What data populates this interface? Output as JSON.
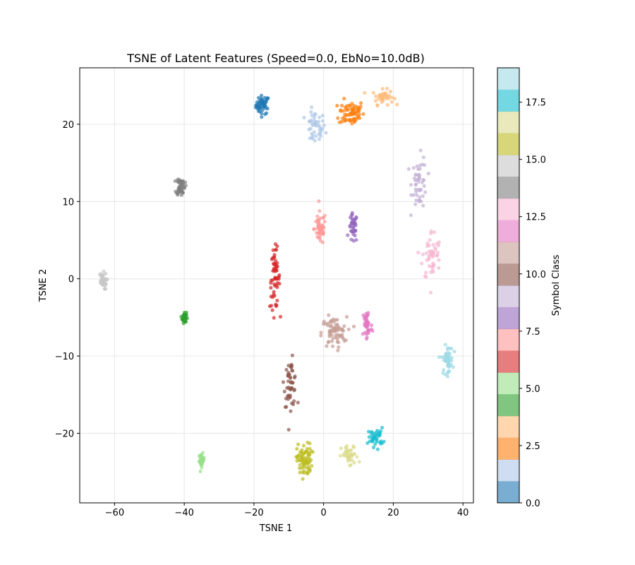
{
  "chart_data": {
    "type": "scatter",
    "title": "TSNE of Latent Features (Speed=0.0, EbNo=10.0dB)",
    "xlabel": "TSNE 1",
    "ylabel": "TSNE 2",
    "xlim": [
      -70,
      43
    ],
    "ylim": [
      -29,
      27.3
    ],
    "xticks": [
      -60,
      -40,
      -20,
      0,
      20,
      40
    ],
    "yticks": [
      -20,
      -10,
      0,
      10,
      20
    ],
    "grid": true,
    "colorbar": {
      "label": "Symbol Class",
      "range": [
        0,
        19
      ],
      "ticks": [
        "0.0",
        "2.5",
        "5.0",
        "7.5",
        "10.0",
        "12.5",
        "15.0",
        "17.5"
      ],
      "tick_values": [
        0,
        2.5,
        5,
        7.5,
        10,
        12.5,
        15,
        17.5
      ],
      "colormap": "tab20",
      "colors": [
        "#1f77b4",
        "#aec7e8",
        "#ff7f0e",
        "#ffbb78",
        "#2ca02c",
        "#98df8a",
        "#d62728",
        "#ff9896",
        "#9467bd",
        "#c5b0d5",
        "#8c564b",
        "#c49c94",
        "#e377c2",
        "#f7b6d2",
        "#7f7f7f",
        "#c7c7c7",
        "#bcbd22",
        "#dbdb8d",
        "#17becf",
        "#9edae5"
      ]
    },
    "clusters": [
      {
        "class": 0,
        "center": [
          -17.5,
          22.5
        ],
        "spread": [
          1.6,
          1.0
        ],
        "count": 50
      },
      {
        "class": 1,
        "center": [
          -2.5,
          19.5
        ],
        "spread": [
          2.5,
          1.8
        ],
        "count": 45
      },
      {
        "class": 2,
        "center": [
          8,
          21.5
        ],
        "spread": [
          3.0,
          1.4
        ],
        "count": 70
      },
      {
        "class": 3,
        "center": [
          17,
          23.5
        ],
        "spread": [
          2.5,
          0.8
        ],
        "count": 40
      },
      {
        "class": 4,
        "center": [
          -40,
          -5
        ],
        "spread": [
          0.5,
          0.6
        ],
        "count": 40
      },
      {
        "class": 5,
        "center": [
          -35,
          -23.5
        ],
        "spread": [
          0.6,
          0.7
        ],
        "count": 40
      },
      {
        "class": 6,
        "center": [
          -14,
          0
        ],
        "spread": [
          1.2,
          3.2
        ],
        "count": 60
      },
      {
        "class": 7,
        "center": [
          -1,
          6.5
        ],
        "spread": [
          1.4,
          1.8
        ],
        "count": 50
      },
      {
        "class": 8,
        "center": [
          8.5,
          6.5
        ],
        "spread": [
          1.0,
          1.6
        ],
        "count": 40
      },
      {
        "class": 9,
        "center": [
          27.5,
          12.5
        ],
        "spread": [
          1.8,
          2.8
        ],
        "count": 50
      },
      {
        "class": 10,
        "center": [
          -9.5,
          -13.5
        ],
        "spread": [
          1.5,
          2.5
        ],
        "count": 50
      },
      {
        "class": 11,
        "center": [
          3,
          -7
        ],
        "spread": [
          3.0,
          1.7
        ],
        "count": 70
      },
      {
        "class": 12,
        "center": [
          12.5,
          -6
        ],
        "spread": [
          1.2,
          2.0
        ],
        "count": 40
      },
      {
        "class": 13,
        "center": [
          31,
          3
        ],
        "spread": [
          2.2,
          2.8
        ],
        "count": 50
      },
      {
        "class": 14,
        "center": [
          -41,
          12
        ],
        "spread": [
          1.0,
          1.0
        ],
        "count": 50
      },
      {
        "class": 15,
        "center": [
          -63.5,
          -0.3
        ],
        "spread": [
          1.0,
          0.9
        ],
        "count": 40
      },
      {
        "class": 16,
        "center": [
          -5.5,
          -23.5
        ],
        "spread": [
          1.8,
          1.8
        ],
        "count": 80
      },
      {
        "class": 17,
        "center": [
          7.5,
          -23
        ],
        "spread": [
          2.0,
          1.2
        ],
        "count": 40
      },
      {
        "class": 18,
        "center": [
          15,
          -20.5
        ],
        "spread": [
          1.8,
          1.0
        ],
        "count": 40
      },
      {
        "class": 19,
        "center": [
          35.5,
          -10.5
        ],
        "spread": [
          1.3,
          1.5
        ],
        "count": 50
      }
    ]
  }
}
